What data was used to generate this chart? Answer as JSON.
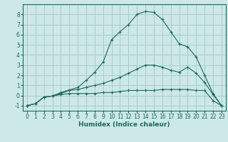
{
  "xlabel": "Humidex (Indice chaleur)",
  "bg_color": "#cce8e8",
  "grid_color": "#aacccc",
  "line_color": "#1a6b5a",
  "xlim": [
    -0.5,
    23.5
  ],
  "ylim": [
    -1.5,
    9.0
  ],
  "xticks": [
    0,
    1,
    2,
    3,
    4,
    5,
    6,
    7,
    8,
    9,
    10,
    11,
    12,
    13,
    14,
    15,
    16,
    17,
    18,
    19,
    20,
    21,
    22,
    23
  ],
  "yticks": [
    -1,
    0,
    1,
    2,
    3,
    4,
    5,
    6,
    7,
    8
  ],
  "line1_x": [
    0,
    1,
    2,
    3,
    4,
    5,
    6,
    7,
    8,
    9,
    10,
    11,
    12,
    13,
    14,
    15,
    16,
    17,
    18,
    19,
    20,
    21,
    22,
    23
  ],
  "line1_y": [
    -1.0,
    -0.8,
    -0.15,
    -0.05,
    0.1,
    0.2,
    0.2,
    0.2,
    0.2,
    0.3,
    0.3,
    0.4,
    0.5,
    0.5,
    0.5,
    0.5,
    0.6,
    0.6,
    0.6,
    0.6,
    0.5,
    0.5,
    -0.5,
    -1.0
  ],
  "line2_x": [
    0,
    1,
    2,
    3,
    4,
    5,
    6,
    7,
    8,
    9,
    10,
    11,
    12,
    13,
    14,
    15,
    16,
    17,
    18,
    19,
    20,
    21,
    22,
    23
  ],
  "line2_y": [
    -1.0,
    -0.8,
    -0.15,
    -0.05,
    0.2,
    0.5,
    0.6,
    0.8,
    1.0,
    1.2,
    1.5,
    1.8,
    2.2,
    2.6,
    3.0,
    3.0,
    2.8,
    2.5,
    2.3,
    2.8,
    2.2,
    1.3,
    0.1,
    -1.0
  ],
  "line3_x": [
    0,
    1,
    2,
    3,
    4,
    5,
    6,
    7,
    8,
    9,
    10,
    11,
    12,
    13,
    14,
    15,
    16,
    17,
    18,
    19,
    20,
    21,
    22,
    23
  ],
  "line3_y": [
    -1.0,
    -0.8,
    -0.15,
    -0.05,
    0.3,
    0.55,
    0.8,
    1.5,
    2.3,
    3.3,
    5.5,
    6.3,
    7.0,
    8.0,
    8.3,
    8.2,
    7.5,
    6.3,
    5.1,
    4.8,
    3.8,
    2.0,
    0.2,
    -1.0
  ],
  "xlabel_fontsize": 6.5,
  "tick_fontsize": 5.5
}
